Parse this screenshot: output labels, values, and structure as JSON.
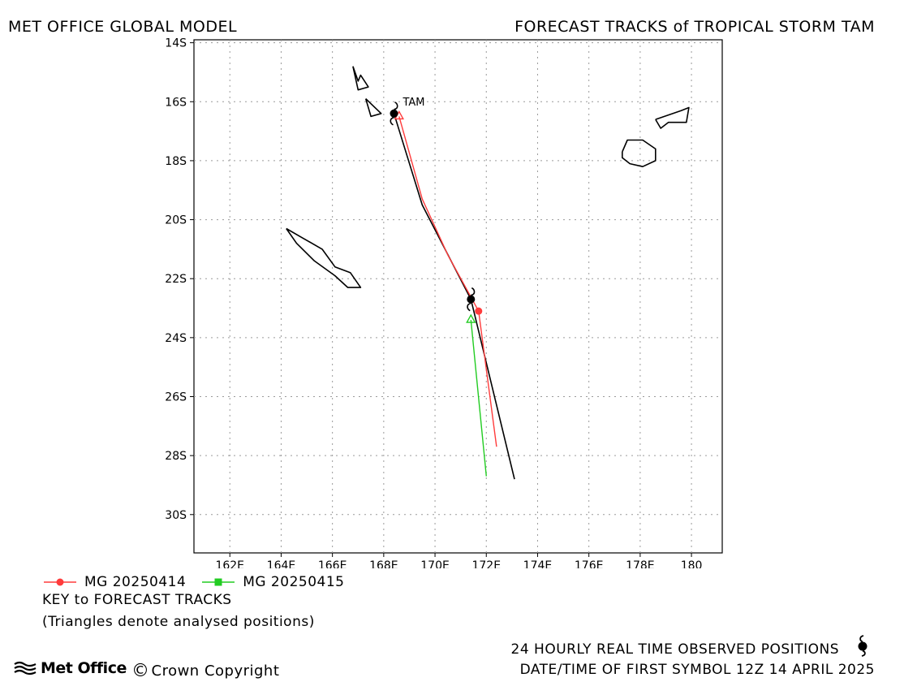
{
  "header": {
    "left": "MET OFFICE GLOBAL MODEL",
    "right": "FORECAST TRACKS of TROPICAL STORM TAM"
  },
  "chart_data": {
    "type": "map-tracks",
    "xlim": [
      160.6,
      181.2
    ],
    "ylim": [
      -31.3,
      -13.9
    ],
    "x_ticks": [
      162,
      164,
      166,
      168,
      170,
      172,
      174,
      176,
      178,
      180
    ],
    "x_tick_labels": [
      "162E",
      "164E",
      "166E",
      "168E",
      "170E",
      "172E",
      "174E",
      "176E",
      "178E",
      "180"
    ],
    "y_ticks": [
      -14,
      -16,
      -18,
      -20,
      -22,
      -24,
      -26,
      -28,
      -30
    ],
    "y_tick_labels": [
      "14S",
      "16S",
      "18S",
      "20S",
      "22S",
      "24S",
      "26S",
      "28S",
      "30S"
    ],
    "grid": true,
    "storm_label": "TAM",
    "observed_track": {
      "points": [
        [
          168.4,
          -16.4
        ],
        [
          171.4,
          -22.7
        ]
      ],
      "lon": [
        168.4,
        169.5,
        171.4,
        173.1
      ],
      "lat": [
        -16.4,
        -19.5,
        -22.7,
        -28.8
      ]
    },
    "series": [
      {
        "name": "MG 20250414",
        "color": "#ff3b3b",
        "analysed": [
          168.6,
          -16.5
        ],
        "lon": [
          168.6,
          169.5,
          170.5,
          171.7,
          172.4
        ],
        "lat": [
          -16.5,
          -19.3,
          -21.2,
          -23.1,
          -27.7
        ],
        "forecast_markers": [
          [
            171.7,
            -23.1
          ]
        ]
      },
      {
        "name": "MG 20250415",
        "color": "#22cc22",
        "analysed": [
          171.4,
          -23.4
        ],
        "lon": [
          171.4,
          172.0
        ],
        "lat": [
          -23.4,
          -28.7
        ],
        "forecast_markers": []
      }
    ],
    "coastlines": [
      [
        [
          166.8,
          -14.8
        ],
        [
          167.0,
          -15.6
        ],
        [
          167.4,
          -15.5
        ],
        [
          167.1,
          -15.1
        ],
        [
          167.0,
          -15.3
        ],
        [
          166.8,
          -14.8
        ]
      ],
      [
        [
          167.3,
          -15.9
        ],
        [
          167.5,
          -16.5
        ],
        [
          167.9,
          -16.4
        ],
        [
          167.3,
          -15.9
        ]
      ],
      [
        [
          164.2,
          -20.3
        ],
        [
          164.6,
          -20.8
        ],
        [
          165.3,
          -21.4
        ],
        [
          166.1,
          -21.9
        ],
        [
          166.6,
          -22.3
        ],
        [
          167.1,
          -22.3
        ],
        [
          166.7,
          -21.8
        ],
        [
          166.1,
          -21.6
        ],
        [
          165.6,
          -21.0
        ],
        [
          164.8,
          -20.6
        ],
        [
          164.2,
          -20.3
        ]
      ],
      [
        [
          177.3,
          -17.7
        ],
        [
          177.5,
          -17.3
        ],
        [
          178.1,
          -17.3
        ],
        [
          178.6,
          -17.6
        ],
        [
          178.6,
          -18.0
        ],
        [
          178.1,
          -18.2
        ],
        [
          177.6,
          -18.1
        ],
        [
          177.3,
          -17.9
        ],
        [
          177.3,
          -17.7
        ]
      ],
      [
        [
          178.6,
          -16.6
        ],
        [
          179.6,
          -16.3
        ],
        [
          179.9,
          -16.2
        ],
        [
          179.8,
          -16.7
        ],
        [
          179.1,
          -16.7
        ],
        [
          178.8,
          -16.9
        ],
        [
          178.6,
          -16.6
        ]
      ]
    ]
  },
  "legend": {
    "item1": "MG 20250414",
    "item2": "MG 20250415",
    "item1_color": "#ff3b3b",
    "item2_color": "#22cc22"
  },
  "key": {
    "title": "KEY to FORECAST TRACKS",
    "note": "(Triangles denote analysed positions)"
  },
  "footer": {
    "brand": "Met Office",
    "copy_symbol": "©",
    "copyright": "Crown Copyright",
    "observed": "24 HOURLY REAL TIME OBSERVED POSITIONS",
    "date": "DATE/TIME OF FIRST SYMBOL 12Z 14 APRIL 2025",
    "obs_icon": "cyclone-symbol-icon"
  }
}
